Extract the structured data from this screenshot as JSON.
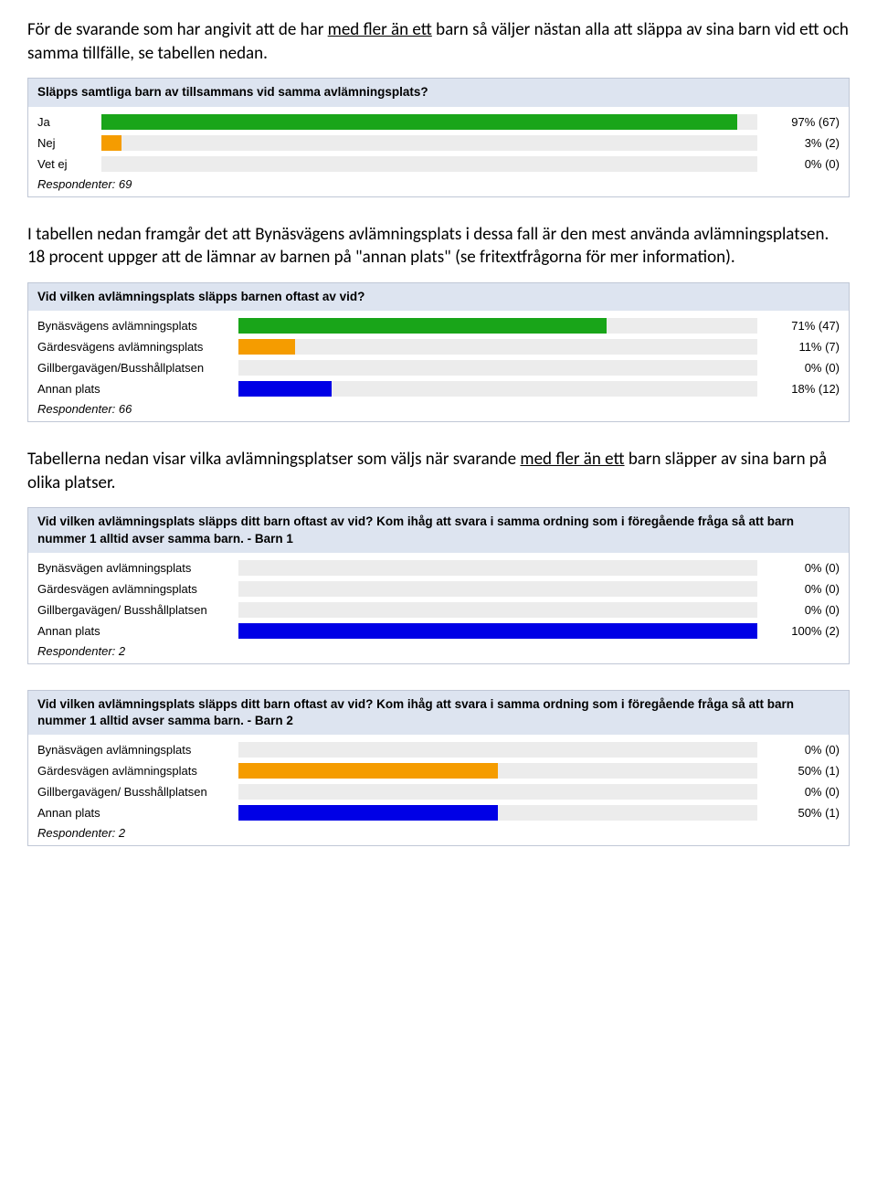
{
  "paragraphs": {
    "p1_pre": "För de svarande som har angivit att de har ",
    "p1_u": "med fler än ett",
    "p1_post": " barn så väljer nästan alla att släppa av sina barn vid ett och samma tillfälle, se tabellen nedan.",
    "p2": "I tabellen nedan framgår det att Bynäsvägens avlämningsplats i dessa fall är den mest använda avlämningsplatsen. 18 procent uppger att de lämnar av barnen på \"annan plats\" (se fritextfrågorna för mer information).",
    "p3_pre": "Tabellerna nedan visar vilka avlämningsplatser som väljs när svarande ",
    "p3_u": "med fler än ett",
    "p3_post": " barn släpper av sina barn på olika platser."
  },
  "colors": {
    "track": "#ececec",
    "green": "#19a519",
    "orange": "#f59c00",
    "blue": "#0000e6",
    "header_bg": "#dde4f0",
    "border": "#c0c7d6"
  },
  "charts": [
    {
      "title": "Släpps samtliga barn av tillsammans vid samma avlämningsplats?",
      "label_width": 70,
      "rows": [
        {
          "label": "Ja",
          "pct": 97,
          "count": 67,
          "color": "green"
        },
        {
          "label": "Nej",
          "pct": 3,
          "count": 2,
          "color": "orange"
        },
        {
          "label": "Vet ej",
          "pct": 0,
          "count": 0,
          "color": "blue"
        }
      ],
      "respondents": 69
    },
    {
      "title": "Vid vilken avlämningsplats släpps barnen oftast av vid?",
      "label_width": 220,
      "rows": [
        {
          "label": "Bynäsvägens avlämningsplats",
          "pct": 71,
          "count": 47,
          "color": "green"
        },
        {
          "label": "Gärdesvägens avlämningsplats",
          "pct": 11,
          "count": 7,
          "color": "orange"
        },
        {
          "label": "Gillbergavägen/Busshållplatsen",
          "pct": 0,
          "count": 0,
          "color": "blue"
        },
        {
          "label": "Annan plats",
          "pct": 18,
          "count": 12,
          "color": "blue"
        }
      ],
      "respondents": 66
    },
    {
      "title": "Vid vilken avlämningsplats släpps ditt barn oftast av vid? Kom ihåg att svara i samma ordning som i föregående fråga så att barn nummer 1 alltid avser samma barn. - Barn 1",
      "label_width": 220,
      "rows": [
        {
          "label": "Bynäsvägen avlämningsplats",
          "pct": 0,
          "count": 0,
          "color": "green"
        },
        {
          "label": "Gärdesvägen avlämningsplats",
          "pct": 0,
          "count": 0,
          "color": "orange"
        },
        {
          "label": "Gillbergavägen/ Busshållplatsen",
          "pct": 0,
          "count": 0,
          "color": "blue"
        },
        {
          "label": "Annan plats",
          "pct": 100,
          "count": 2,
          "color": "blue"
        }
      ],
      "respondents": 2
    },
    {
      "title": "Vid vilken avlämningsplats släpps ditt barn oftast av vid? Kom ihåg att svara i samma ordning som i föregående fråga så att barn nummer 1 alltid avser samma barn. - Barn 2",
      "label_width": 220,
      "rows": [
        {
          "label": "Bynäsvägen avlämningsplats",
          "pct": 0,
          "count": 0,
          "color": "green"
        },
        {
          "label": "Gärdesvägen avlämningsplats",
          "pct": 50,
          "count": 1,
          "color": "orange"
        },
        {
          "label": "Gillbergavägen/ Busshållplatsen",
          "pct": 0,
          "count": 0,
          "color": "blue"
        },
        {
          "label": "Annan plats",
          "pct": 50,
          "count": 1,
          "color": "blue"
        }
      ],
      "respondents": 2
    }
  ],
  "respondents_label": "Respondenter: "
}
